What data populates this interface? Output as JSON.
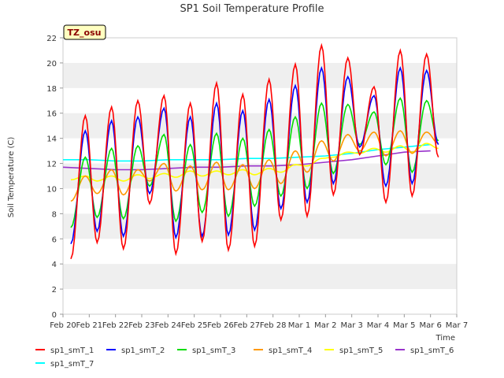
{
  "chart_data": {
    "type": "line",
    "title": "SP1 Soil Temperature Profile",
    "xlabel": "Time",
    "ylabel": "Soil Temperature (C)",
    "badge": "TZ_osu",
    "ylim": [
      0,
      22
    ],
    "yticks": [
      0,
      2,
      4,
      6,
      8,
      10,
      12,
      14,
      16,
      18,
      20,
      22
    ],
    "xlim": [
      0,
      15
    ],
    "xticks": [
      0,
      1,
      2,
      3,
      4,
      5,
      6,
      7,
      8,
      9,
      10,
      11,
      12,
      13,
      14,
      15
    ],
    "xtick_labels": [
      "Feb 20",
      "Feb 21",
      "Feb 22",
      "Feb 23",
      "Feb 24",
      "Feb 25",
      "Feb 26",
      "Feb 27",
      "Feb 28",
      "Mar 1",
      "Mar 2",
      "Mar 3",
      "Mar 4",
      "Mar 5",
      "Mar 6",
      "Mar 7"
    ],
    "grid": "horizontal bands",
    "legend_position": "bottom",
    "series": [
      {
        "name": "sp1_smT_1",
        "color": "#ff0000",
        "key": "t1",
        "min": [
          4.4,
          5.7,
          5.2,
          8.8,
          4.8,
          5.8,
          5.1,
          5.4,
          7.5,
          7.8,
          9.5,
          12.7,
          8.9,
          9.4,
          12.5
        ],
        "max": [
          15.8,
          16.5,
          17.0,
          17.4,
          16.8,
          18.4,
          17.5,
          18.7,
          19.9,
          21.4,
          20.4,
          18.1,
          21.0,
          20.7
        ]
      },
      {
        "name": "sp1_smT_2",
        "color": "#0000ff",
        "key": "t2",
        "min": [
          5.6,
          6.6,
          6.2,
          9.6,
          6.1,
          6.2,
          6.3,
          6.7,
          8.4,
          8.9,
          10.4,
          13.3,
          10.2,
          10.4,
          13.5
        ],
        "max": [
          14.6,
          15.4,
          15.7,
          16.4,
          15.7,
          16.8,
          16.2,
          17.1,
          18.2,
          19.6,
          18.9,
          17.4,
          19.6,
          19.4
        ]
      },
      {
        "name": "sp1_smT_3",
        "color": "#00dd00",
        "key": "t3",
        "min": [
          6.9,
          7.7,
          7.6,
          10.2,
          7.4,
          8.1,
          7.8,
          8.6,
          9.4,
          10.0,
          11.2,
          13.5,
          11.9,
          11.3,
          13.8
        ],
        "max": [
          12.5,
          13.2,
          13.4,
          14.3,
          13.5,
          14.4,
          14.0,
          14.7,
          15.7,
          16.8,
          16.7,
          16.1,
          17.2,
          17.0
        ]
      },
      {
        "name": "sp1_smT_4",
        "color": "#ff9900",
        "key": "t4",
        "min": [
          9.0,
          9.6,
          9.5,
          10.6,
          9.8,
          9.9,
          9.9,
          10.0,
          10.4,
          11.3,
          12.2,
          13.0,
          12.6,
          12.8,
          13.6
        ],
        "max": [
          11.0,
          11.5,
          11.5,
          12.0,
          11.8,
          12.1,
          11.9,
          12.3,
          13.0,
          13.8,
          14.3,
          14.5,
          14.6,
          14.5
        ]
      },
      {
        "name": "sp1_smT_5",
        "color": "#ffff00",
        "key": "t5",
        "min": [
          10.7,
          10.6,
          10.6,
          10.8,
          10.9,
          11.0,
          11.1,
          11.1,
          11.3,
          11.8,
          12.5,
          12.8,
          12.9,
          12.9,
          13.2
        ],
        "max": [
          11.0,
          11.0,
          11.1,
          11.2,
          11.4,
          11.4,
          11.5,
          11.6,
          11.9,
          12.4,
          12.9,
          13.2,
          13.4,
          13.6
        ]
      },
      {
        "name": "sp1_smT_6",
        "color": "#9933cc",
        "x": [
          0,
          1,
          2,
          3,
          4,
          5,
          6,
          7,
          8,
          9,
          10,
          11,
          12,
          13,
          14
        ],
        "values": [
          11.7,
          11.6,
          11.5,
          11.5,
          11.6,
          11.7,
          11.7,
          11.8,
          11.8,
          11.9,
          12.1,
          12.3,
          12.6,
          12.9,
          13.0
        ]
      },
      {
        "name": "sp1_smT_7",
        "color": "#00ffff",
        "x": [
          0,
          1,
          2,
          3,
          4,
          5,
          6,
          7,
          8,
          9,
          10,
          11,
          12,
          13,
          14
        ],
        "values": [
          12.3,
          12.3,
          12.2,
          12.2,
          12.3,
          12.3,
          12.3,
          12.4,
          12.4,
          12.5,
          12.6,
          12.8,
          13.1,
          13.3,
          13.5
        ]
      }
    ]
  }
}
